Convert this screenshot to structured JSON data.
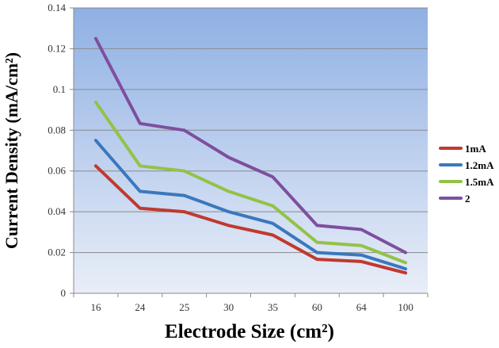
{
  "chart_data": {
    "type": "line",
    "title": "",
    "xlabel": "Electrode Size (cm²)",
    "ylabel": "Current Density (mA/cm²)",
    "categories": [
      "16",
      "24",
      "25",
      "30",
      "35",
      "60",
      "64",
      "100"
    ],
    "ylim": [
      0,
      0.14
    ],
    "yticks": [
      "0",
      "0.02",
      "0.04",
      "0.06",
      "0.08",
      "0.1",
      "0.12",
      "0.14"
    ],
    "grid": true,
    "legend_position": "right",
    "series": [
      {
        "name": "1mA",
        "color": "#c0392f",
        "values": [
          0.0625,
          0.0417,
          0.04,
          0.0333,
          0.0286,
          0.0167,
          0.0156,
          0.01
        ]
      },
      {
        "name": "1.2mA",
        "color": "#3a78bd",
        "values": [
          0.075,
          0.05,
          0.048,
          0.04,
          0.0343,
          0.02,
          0.0188,
          0.012
        ]
      },
      {
        "name": "1.5mA",
        "color": "#93c246",
        "values": [
          0.0938,
          0.0625,
          0.06,
          0.05,
          0.0429,
          0.025,
          0.0234,
          0.015
        ]
      },
      {
        "name": "2",
        "color": "#7e4f9e",
        "values": [
          0.125,
          0.0833,
          0.08,
          0.0667,
          0.0571,
          0.0333,
          0.0313,
          0.02
        ]
      }
    ],
    "background": {
      "top": "#8fb0e4",
      "bottom": "#e9eef8"
    }
  }
}
